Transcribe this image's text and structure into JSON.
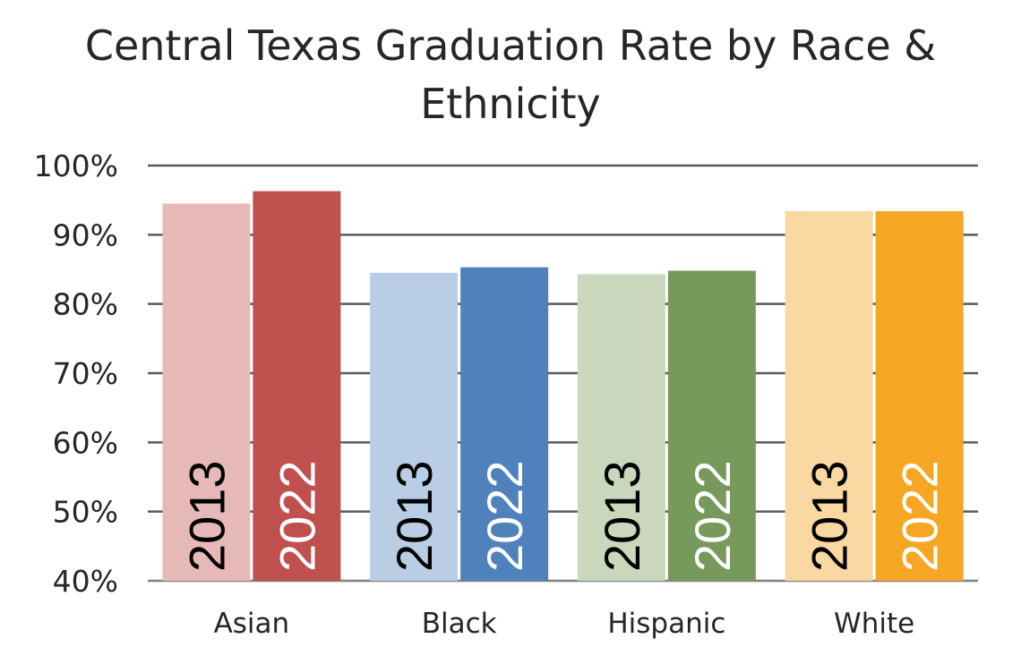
{
  "chart_data": {
    "type": "bar",
    "title_lines": [
      "Central Texas Graduation Rate by Race &",
      "Ethnicity"
    ],
    "categories": [
      "Asian",
      "Black",
      "Hispanic",
      "White"
    ],
    "ylim": [
      40,
      100
    ],
    "yticks": [
      "40%",
      "50%",
      "60%",
      "70%",
      "80%",
      "90%",
      "100%"
    ],
    "yticks_values": [
      40,
      50,
      60,
      70,
      80,
      90,
      100
    ],
    "grid": true,
    "bars": [
      {
        "category": "Asian",
        "label": "2013",
        "value": 94.5,
        "color": "#E6B9B8",
        "text_color": "#000000"
      },
      {
        "category": "Asian",
        "label": "2022",
        "value": 96.3,
        "color": "#C0504D",
        "text_color": "#ffffff"
      },
      {
        "category": "Black",
        "label": "2013",
        "value": 84.5,
        "color": "#B9CDE5",
        "text_color": "#000000"
      },
      {
        "category": "Black",
        "label": "2022",
        "value": 85.3,
        "color": "#4F81BD",
        "text_color": "#ffffff"
      },
      {
        "category": "Hispanic",
        "label": "2013",
        "value": 84.3,
        "color": "#C9D7BD",
        "text_color": "#000000"
      },
      {
        "category": "Hispanic",
        "label": "2022",
        "value": 84.8,
        "color": "#77995C",
        "text_color": "#ffffff"
      },
      {
        "category": "White",
        "label": "2013",
        "value": 93.4,
        "color": "#F9D8A2",
        "text_color": "#000000"
      },
      {
        "category": "White",
        "label": "2022",
        "value": 93.4,
        "color": "#F5A623",
        "text_color": "#ffffff"
      }
    ]
  }
}
